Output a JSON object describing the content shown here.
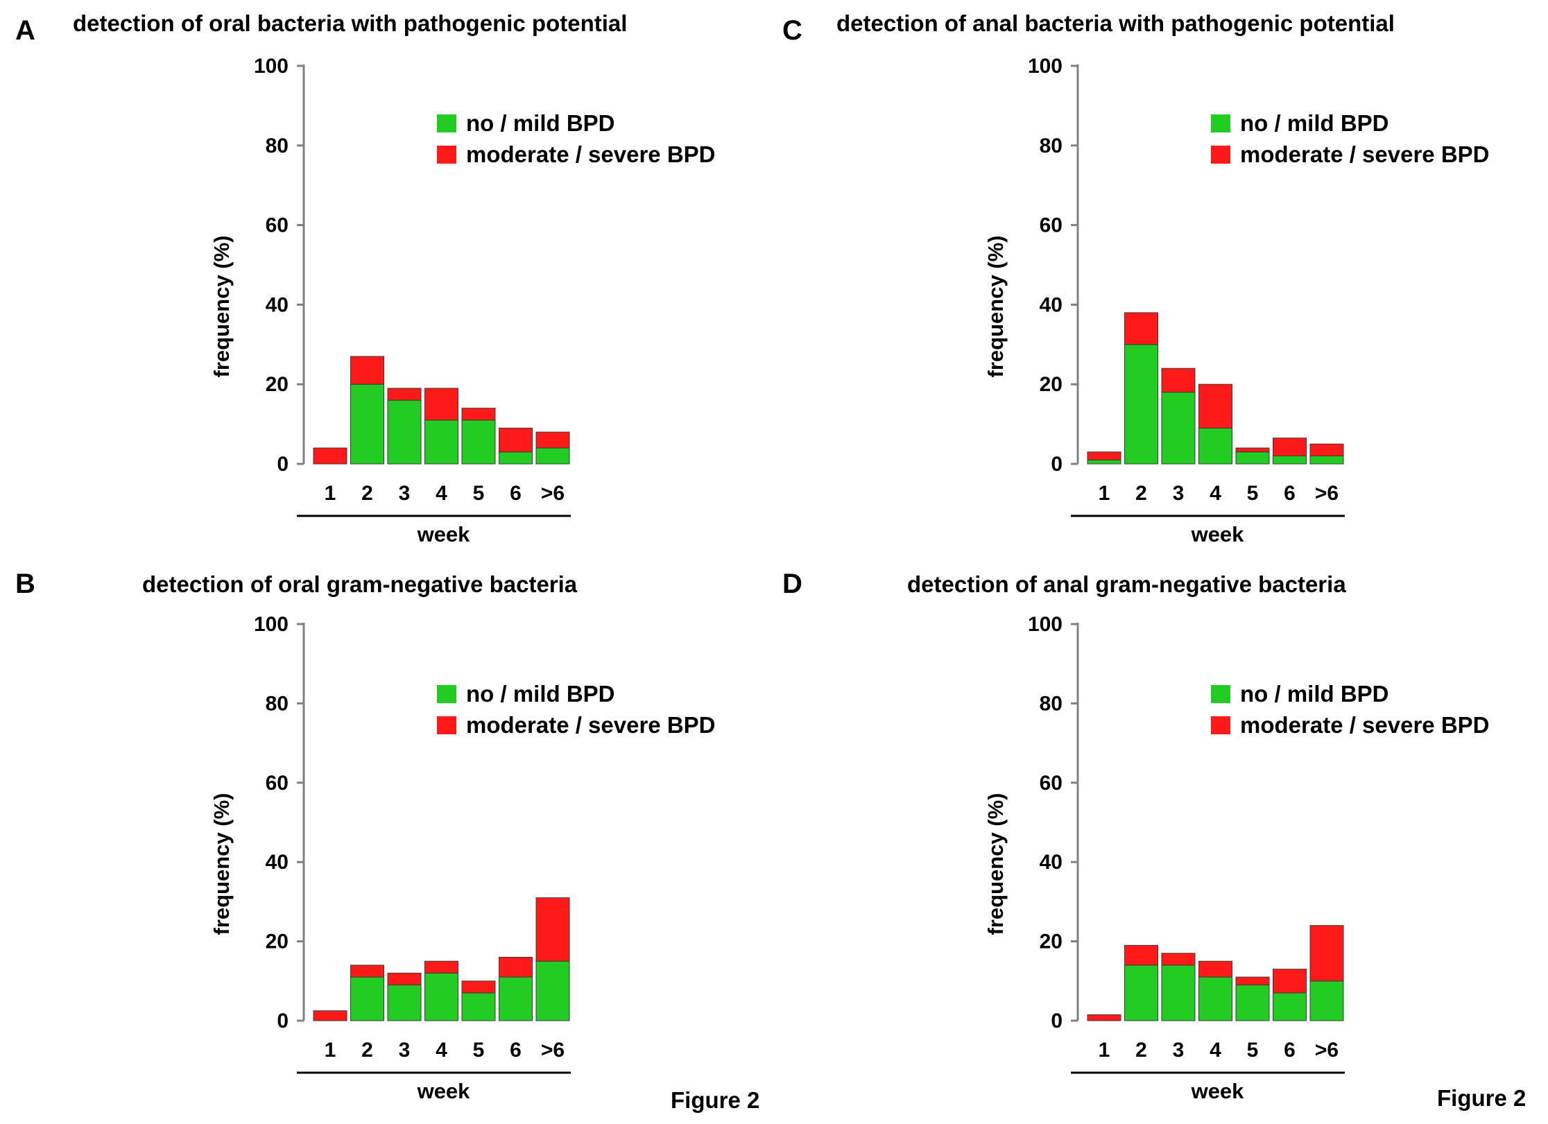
{
  "figure_label": "Figure 2",
  "colors": {
    "no_mild": "#22cc22",
    "moderate_severe": "#ff1a1a",
    "axis": "#808080",
    "text": "#000000"
  },
  "chart_data": [
    {
      "panel": "A",
      "type": "bar",
      "stacked": true,
      "title": "detection of oral bacteria with pathogenic potential",
      "xlabel": "week",
      "ylabel": "frequency (%)",
      "ylim": [
        0,
        100
      ],
      "yticks": [
        "0",
        "20",
        "40",
        "60",
        "80",
        "100"
      ],
      "categories": [
        "1",
        "2",
        "3",
        "4",
        "5",
        "6",
        ">6"
      ],
      "legend_position": "top-right",
      "series": [
        {
          "name": "no / mild BPD",
          "color": "#22cc22",
          "values": [
            0,
            20,
            16,
            11,
            11,
            3,
            4
          ]
        },
        {
          "name": "moderate / severe BPD",
          "color": "#ff1a1a",
          "values": [
            4,
            7,
            3,
            8,
            3,
            6,
            4
          ]
        }
      ]
    },
    {
      "panel": "B",
      "type": "bar",
      "stacked": true,
      "title": "detection of oral gram-negative bacteria",
      "xlabel": "week",
      "ylabel": "frequency (%)",
      "ylim": [
        0,
        100
      ],
      "yticks": [
        "0",
        "20",
        "40",
        "60",
        "80",
        "100"
      ],
      "categories": [
        "1",
        "2",
        "3",
        "4",
        "5",
        "6",
        ">6"
      ],
      "legend_position": "top-right",
      "series": [
        {
          "name": "no / mild BPD",
          "color": "#22cc22",
          "values": [
            0,
            11,
            9,
            12,
            7,
            11,
            15
          ]
        },
        {
          "name": "moderate / severe BPD",
          "color": "#ff1a1a",
          "values": [
            2.5,
            3,
            3,
            3,
            3,
            5,
            16
          ]
        }
      ]
    },
    {
      "panel": "C",
      "type": "bar",
      "stacked": true,
      "title": "detection of anal bacteria with pathogenic potential",
      "xlabel": "week",
      "ylabel": "frequency (%)",
      "ylim": [
        0,
        100
      ],
      "yticks": [
        "0",
        "20",
        "40",
        "60",
        "80",
        "100"
      ],
      "categories": [
        "1",
        "2",
        "3",
        "4",
        "5",
        "6",
        ">6"
      ],
      "legend_position": "top-right",
      "series": [
        {
          "name": "no / mild BPD",
          "color": "#22cc22",
          "values": [
            1,
            30,
            18,
            9,
            3,
            2,
            2
          ]
        },
        {
          "name": "moderate / severe BPD",
          "color": "#ff1a1a",
          "values": [
            2,
            8,
            6,
            11,
            1,
            4.5,
            3
          ]
        }
      ]
    },
    {
      "panel": "D",
      "type": "bar",
      "stacked": true,
      "title": "detection of anal gram-negative bacteria",
      "xlabel": "week",
      "ylabel": "frequency (%)",
      "ylim": [
        0,
        100
      ],
      "yticks": [
        "0",
        "20",
        "40",
        "60",
        "80",
        "100"
      ],
      "categories": [
        "1",
        "2",
        "3",
        "4",
        "5",
        "6",
        ">6"
      ],
      "legend_position": "top-right",
      "series": [
        {
          "name": "no / mild BPD",
          "color": "#22cc22",
          "values": [
            0,
            14,
            14,
            11,
            9,
            7,
            10
          ]
        },
        {
          "name": "moderate / severe BPD",
          "color": "#ff1a1a",
          "values": [
            1.5,
            5,
            3,
            4,
            2,
            6,
            14
          ]
        }
      ]
    }
  ]
}
